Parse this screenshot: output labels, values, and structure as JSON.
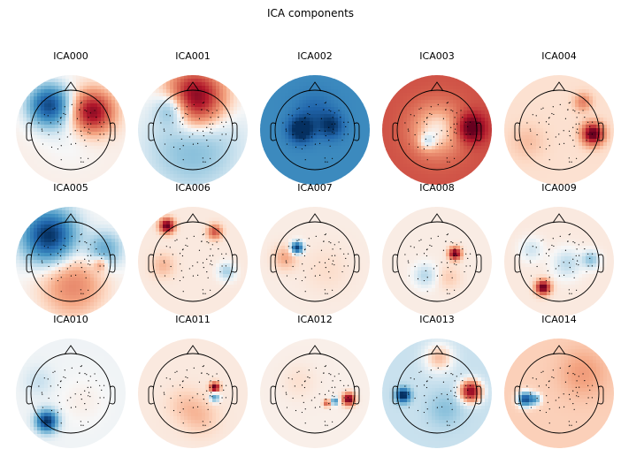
{
  "figure": {
    "title": "ICA components"
  },
  "colors": {
    "positive": "#67001f",
    "negative": "#053061",
    "neutral": "#f7f7f7",
    "outline": "#000000"
  },
  "components": [
    {
      "label": "ICA000",
      "bg": 0.03,
      "blobs": [
        [
          -0.55,
          -0.62,
          0.35,
          -0.9
        ],
        [
          0.55,
          -0.45,
          0.35,
          0.85
        ],
        [
          0.0,
          0.1,
          0.5,
          -0.05
        ]
      ]
    },
    {
      "label": "ICA001",
      "bg": 0.0,
      "blobs": [
        [
          0.05,
          -0.8,
          0.5,
          1.0
        ],
        [
          -0.5,
          -0.55,
          0.3,
          -0.45
        ],
        [
          0.0,
          0.4,
          0.8,
          -0.3
        ]
      ]
    },
    {
      "label": "ICA002",
      "bg": -0.55,
      "blobs": [
        [
          -0.35,
          0.0,
          0.22,
          -0.6
        ],
        [
          0.4,
          -0.1,
          0.22,
          -0.4
        ],
        [
          0.0,
          -0.45,
          0.35,
          -0.2
        ]
      ]
    },
    {
      "label": "ICA003",
      "bg": 0.55,
      "blobs": [
        [
          0.0,
          0.0,
          0.45,
          -0.5
        ],
        [
          0.85,
          -0.05,
          0.25,
          0.6
        ],
        [
          -0.25,
          0.3,
          0.15,
          -0.3
        ]
      ]
    },
    {
      "label": "ICA004",
      "bg": 0.08,
      "blobs": [
        [
          0.85,
          0.1,
          0.18,
          1.0
        ],
        [
          0.6,
          -0.7,
          0.15,
          0.3
        ],
        [
          -0.8,
          0.3,
          0.3,
          0.1
        ]
      ]
    },
    {
      "label": "ICA005",
      "bg": 0.0,
      "blobs": [
        [
          -0.55,
          -0.65,
          0.45,
          -1.0
        ],
        [
          0.05,
          0.6,
          0.55,
          0.35
        ],
        [
          0.85,
          -0.3,
          0.3,
          -0.4
        ],
        [
          0.75,
          0.05,
          0.12,
          0.3
        ]
      ]
    },
    {
      "label": "ICA006",
      "bg": 0.05,
      "blobs": [
        [
          -0.65,
          -0.9,
          0.12,
          1.0
        ],
        [
          0.55,
          -0.75,
          0.12,
          0.5
        ],
        [
          0.85,
          0.25,
          0.15,
          -0.25
        ],
        [
          -0.75,
          0.1,
          0.2,
          0.15
        ]
      ]
    },
    {
      "label": "ICA007",
      "bg": 0.04,
      "blobs": [
        [
          -0.45,
          -0.35,
          0.1,
          -1.0
        ],
        [
          -0.75,
          -0.1,
          0.2,
          0.2
        ],
        [
          0.3,
          0.2,
          0.4,
          0.05
        ]
      ]
    },
    {
      "label": "ICA008",
      "bg": 0.04,
      "blobs": [
        [
          0.45,
          -0.2,
          0.1,
          1.0
        ],
        [
          -0.3,
          0.35,
          0.2,
          -0.2
        ],
        [
          0.3,
          0.4,
          0.2,
          0.1
        ]
      ]
    },
    {
      "label": "ICA009",
      "bg": 0.05,
      "blobs": [
        [
          -0.4,
          0.65,
          0.12,
          1.0
        ],
        [
          0.2,
          0.05,
          0.25,
          -0.2
        ],
        [
          0.8,
          -0.05,
          0.15,
          -0.3
        ],
        [
          -0.7,
          -0.3,
          0.2,
          -0.15
        ]
      ]
    },
    {
      "label": "ICA010",
      "bg": -0.02,
      "blobs": [
        [
          -0.6,
          0.7,
          0.18,
          -1.0
        ],
        [
          0.3,
          0.2,
          0.4,
          0.05
        ],
        [
          -0.8,
          -0.3,
          0.25,
          -0.1
        ]
      ]
    },
    {
      "label": "ICA011",
      "bg": 0.05,
      "blobs": [
        [
          0.55,
          -0.15,
          0.08,
          1.0
        ],
        [
          0.55,
          0.1,
          0.08,
          -0.5
        ],
        [
          -0.2,
          0.3,
          0.3,
          0.1
        ],
        [
          0.2,
          0.6,
          0.3,
          0.12
        ]
      ]
    },
    {
      "label": "ICA012",
      "bg": 0.03,
      "blobs": [
        [
          0.85,
          0.15,
          0.1,
          1.0
        ],
        [
          0.5,
          0.2,
          0.06,
          -0.6
        ],
        [
          0.3,
          0.25,
          0.06,
          0.5
        ],
        [
          -0.4,
          -0.3,
          0.3,
          0.05
        ]
      ]
    },
    {
      "label": "ICA013",
      "bg": -0.12,
      "blobs": [
        [
          -0.85,
          0.05,
          0.12,
          -1.0
        ],
        [
          0.85,
          -0.05,
          0.18,
          1.0
        ],
        [
          0.2,
          0.4,
          0.3,
          -0.15
        ],
        [
          0.05,
          -0.9,
          0.25,
          0.3
        ]
      ]
    },
    {
      "label": "ICA014",
      "bg": 0.13,
      "blobs": [
        [
          -0.85,
          0.15,
          0.12,
          -1.0
        ],
        [
          -0.6,
          0.15,
          0.1,
          -0.5
        ],
        [
          0.6,
          -0.5,
          0.4,
          0.15
        ]
      ]
    }
  ]
}
